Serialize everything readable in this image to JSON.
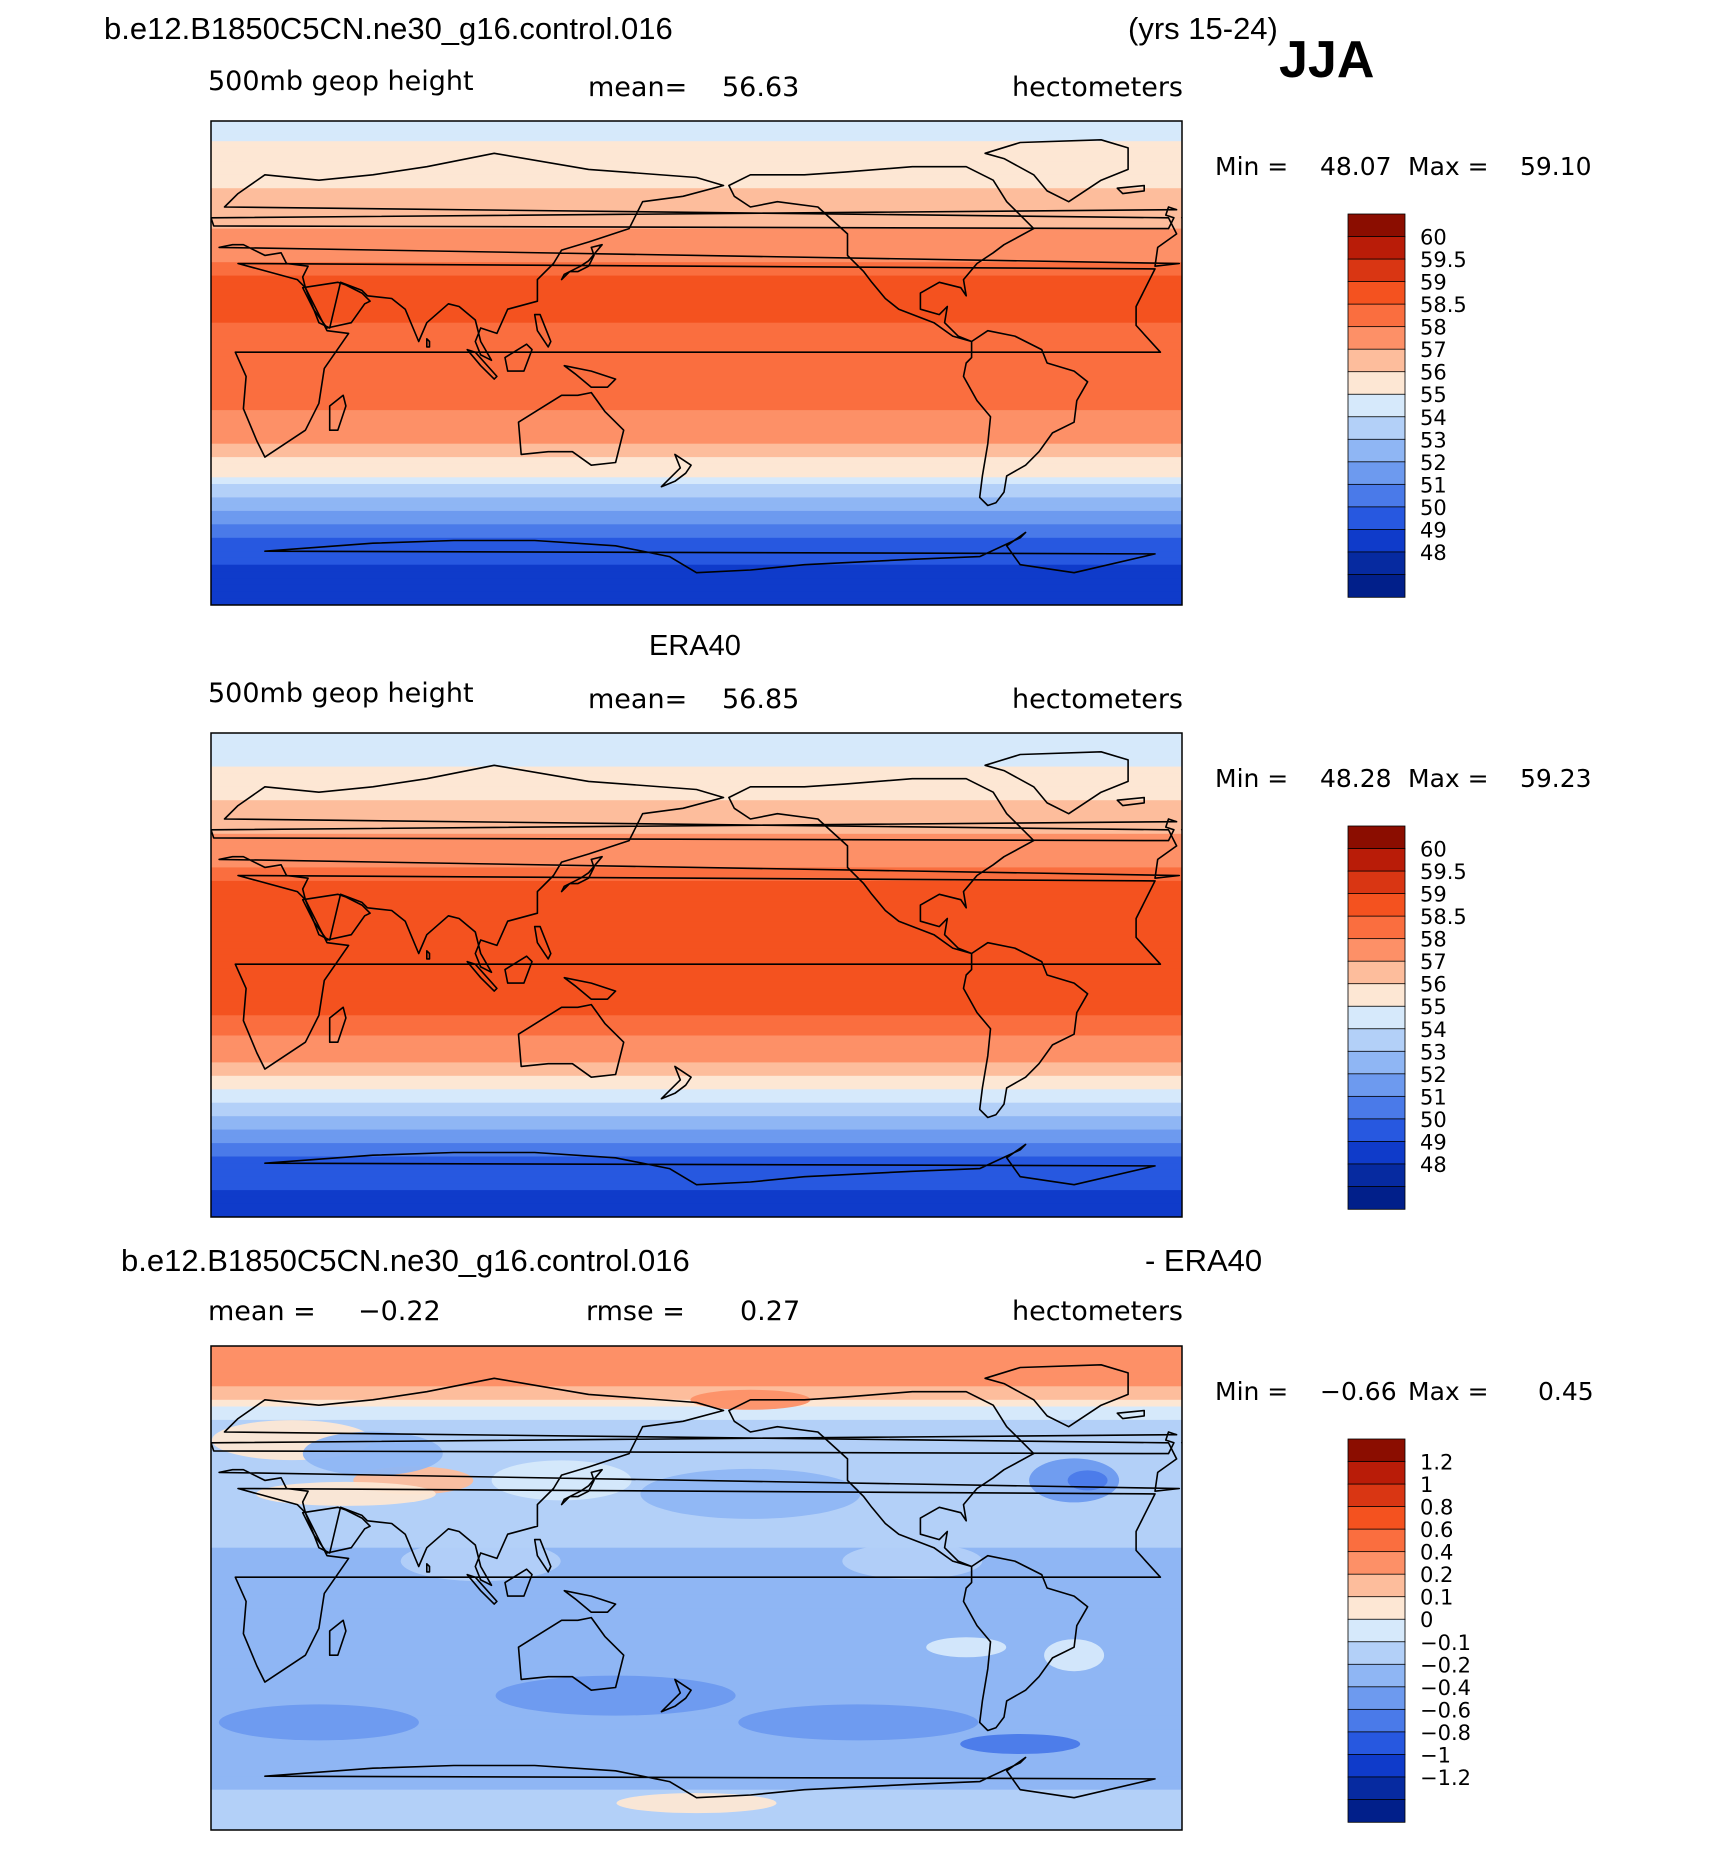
{
  "header": {
    "case_name": "b.e12.B1850C5CN.ne30_g16.control.016",
    "years": "(yrs 15-24)",
    "season": "JJA"
  },
  "colors": {
    "pos_palette": [
      "#feeadb",
      "#fdd0b6",
      "#fcb290",
      "#fc8d62",
      "#f96b3f",
      "#f2501e",
      "#e0371b",
      "#c11c10",
      "#900200"
    ],
    "neg_palette": [
      "#d6e8fb",
      "#b7d2f8",
      "#97baf4",
      "#749ff0",
      "#4d80ec",
      "#2a62e7",
      "#0f46d6",
      "#0530b0",
      "#011f91"
    ],
    "coast": "#000000"
  },
  "chart_data": [
    {
      "type": "heatmap",
      "title": "",
      "left_label": "500mb geop height",
      "mean_label": "mean=",
      "mean_value": "56.63",
      "units": "hectometers",
      "min_label": "Min =",
      "min_value": "48.07",
      "max_label": "Max =",
      "max_value": "59.10",
      "colorbar_levels": [
        "60",
        "59.5",
        "59",
        "58.5",
        "58",
        "57",
        "56",
        "55",
        "54",
        "53",
        "52",
        "51",
        "50",
        "49",
        "48"
      ],
      "colorbar_colors": [
        "#8b0d00",
        "#b91c08",
        "#d93613",
        "#f4521f",
        "#fa6e3f",
        "#fd9067",
        "#fdbd9c",
        "#fde7d4",
        "#d6e9fb",
        "#b3d0f8",
        "#8fb6f4",
        "#6d9aef",
        "#4a7ae9",
        "#2758e0",
        "#0f3bca",
        "#062aa0",
        "#011f8a"
      ],
      "value_range": [
        48.07,
        59.1
      ],
      "projection": "cylindrical equidistant, centered 180",
      "field": [
        {
          "lat": 90,
          "value": 54.6
        },
        {
          "lat": 75,
          "value": 55.3
        },
        {
          "lat": 60,
          "value": 56.3
        },
        {
          "lat": 45,
          "value": 57.4
        },
        {
          "lat": 30,
          "value": 58.8
        },
        {
          "lat": 15,
          "value": 58.5
        },
        {
          "lat": 0,
          "value": 58.3
        },
        {
          "lat": -15,
          "value": 58.3
        },
        {
          "lat": -30,
          "value": 57.0
        },
        {
          "lat": -40,
          "value": 55.3
        },
        {
          "lat": -50,
          "value": 53.2
        },
        {
          "lat": -60,
          "value": 51.1
        },
        {
          "lat": -70,
          "value": 49.3
        },
        {
          "lat": -90,
          "value": 48.3
        }
      ]
    },
    {
      "type": "heatmap",
      "title": "ERA40",
      "left_label": "500mb geop height",
      "mean_label": "mean=",
      "mean_value": "56.85",
      "units": "hectometers",
      "min_label": "Min =",
      "min_value": "48.28",
      "max_label": "Max =",
      "max_value": "59.23",
      "colorbar_levels": [
        "60",
        "59.5",
        "59",
        "58.5",
        "58",
        "57",
        "56",
        "55",
        "54",
        "53",
        "52",
        "51",
        "50",
        "49",
        "48"
      ],
      "colorbar_colors": [
        "#8b0d00",
        "#b91c08",
        "#d93613",
        "#f4521f",
        "#fa6e3f",
        "#fd9067",
        "#fdbd9c",
        "#fde7d4",
        "#d6e9fb",
        "#b3d0f8",
        "#8fb6f4",
        "#6d9aef",
        "#4a7ae9",
        "#2758e0",
        "#0f3bca",
        "#062aa0",
        "#011f8a"
      ],
      "value_range": [
        48.28,
        59.23
      ],
      "projection": "cylindrical equidistant, centered 180",
      "field": [
        {
          "lat": 90,
          "value": 54.3
        },
        {
          "lat": 75,
          "value": 55.2
        },
        {
          "lat": 60,
          "value": 56.4
        },
        {
          "lat": 45,
          "value": 57.6
        },
        {
          "lat": 30,
          "value": 58.9
        },
        {
          "lat": 15,
          "value": 58.7
        },
        {
          "lat": 0,
          "value": 58.6
        },
        {
          "lat": -15,
          "value": 58.5
        },
        {
          "lat": -30,
          "value": 57.3
        },
        {
          "lat": -40,
          "value": 55.6
        },
        {
          "lat": -50,
          "value": 53.5
        },
        {
          "lat": -60,
          "value": 51.3
        },
        {
          "lat": -70,
          "value": 49.5
        },
        {
          "lat": -90,
          "value": 48.5
        }
      ]
    },
    {
      "type": "heatmap",
      "title": "b.e12.B1850C5CN.ne30_g16.control.016",
      "title_right": "- ERA40",
      "mean_label": "mean =",
      "mean_value": "−0.22",
      "rmse_label": "rmse =",
      "rmse_value": "0.27",
      "units": "hectometers",
      "min_label": "Min =",
      "min_value": "−0.66",
      "max_label": "Max =",
      "max_value": "0.45",
      "colorbar_levels": [
        "1.2",
        "1",
        "0.8",
        "0.6",
        "0.4",
        "0.2",
        "0.1",
        "0",
        "−0.1",
        "−0.2",
        "−0.4",
        "−0.6",
        "−0.8",
        "−1",
        "−1.2"
      ],
      "colorbar_colors": [
        "#8b0d00",
        "#b91c08",
        "#d93613",
        "#f4521f",
        "#fa6e3f",
        "#fd9067",
        "#fdbd9c",
        "#fde7d4",
        "#d6e9fb",
        "#b3d0f8",
        "#8fb6f4",
        "#6d9aef",
        "#4a7ae9",
        "#2758e0",
        "#0f3bca",
        "#062aa0",
        "#011f8a"
      ],
      "value_range": [
        -0.66,
        0.45
      ],
      "projection": "cylindrical equidistant, centered 180",
      "field": [
        {
          "lat": 90,
          "value": 0.3
        },
        {
          "lat": 75,
          "value": 0.2
        },
        {
          "lat": 60,
          "value": -0.15
        },
        {
          "lat": 45,
          "value": -0.1
        },
        {
          "lat": 30,
          "value": -0.15
        },
        {
          "lat": 15,
          "value": -0.2
        },
        {
          "lat": 0,
          "value": -0.3
        },
        {
          "lat": -15,
          "value": -0.3
        },
        {
          "lat": -30,
          "value": -0.35
        },
        {
          "lat": -45,
          "value": -0.4
        },
        {
          "lat": -60,
          "value": -0.35
        },
        {
          "lat": -75,
          "value": -0.2
        },
        {
          "lat": -90,
          "value": -0.2
        }
      ]
    }
  ]
}
